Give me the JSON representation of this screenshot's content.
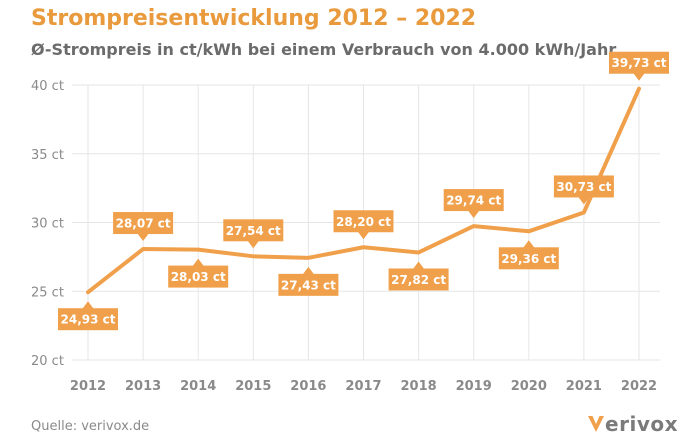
{
  "header": {
    "title": "Strompreisentwicklung 2012 – 2022",
    "subtitle": "Ø-Strompreis in ct/kWh bei einem Verbrauch von 4.000 kWh/Jahr"
  },
  "footer": {
    "source": "Quelle: verivox.de",
    "logo_text": "erivox"
  },
  "colors": {
    "accent": "#f0a04b",
    "title": "#e89a3c",
    "text": "#6b6b6b",
    "grid": "#e6e6e6"
  },
  "chart_data": {
    "type": "line",
    "title": "Strompreisentwicklung 2012 – 2022",
    "subtitle": "Ø-Strompreis in ct/kWh bei einem Verbrauch von 4.000 kWh/Jahr",
    "x": [
      "2012",
      "2013",
      "2014",
      "2015",
      "2016",
      "2017",
      "2018",
      "2019",
      "2020",
      "2021",
      "2022"
    ],
    "series": [
      {
        "values": [
          24.93,
          28.07,
          28.03,
          27.54,
          27.43,
          28.2,
          27.82,
          29.74,
          29.36,
          30.73,
          39.73
        ],
        "labels": [
          "24,93 ct",
          "28,07 ct",
          "28,03 ct",
          "27,54 ct",
          "27,43 ct",
          "28,20 ct",
          "27,82 ct",
          "29,74 ct",
          "29,36 ct",
          "30,73 ct",
          "39,73 ct"
        ]
      }
    ],
    "yticks": [
      20,
      25,
      30,
      35,
      40
    ],
    "ytick_labels": [
      "20 ct",
      "25 ct",
      "30 ct",
      "35 ct",
      "40 ct"
    ],
    "ylim": [
      20,
      40
    ],
    "grid": true,
    "legend": "none"
  }
}
